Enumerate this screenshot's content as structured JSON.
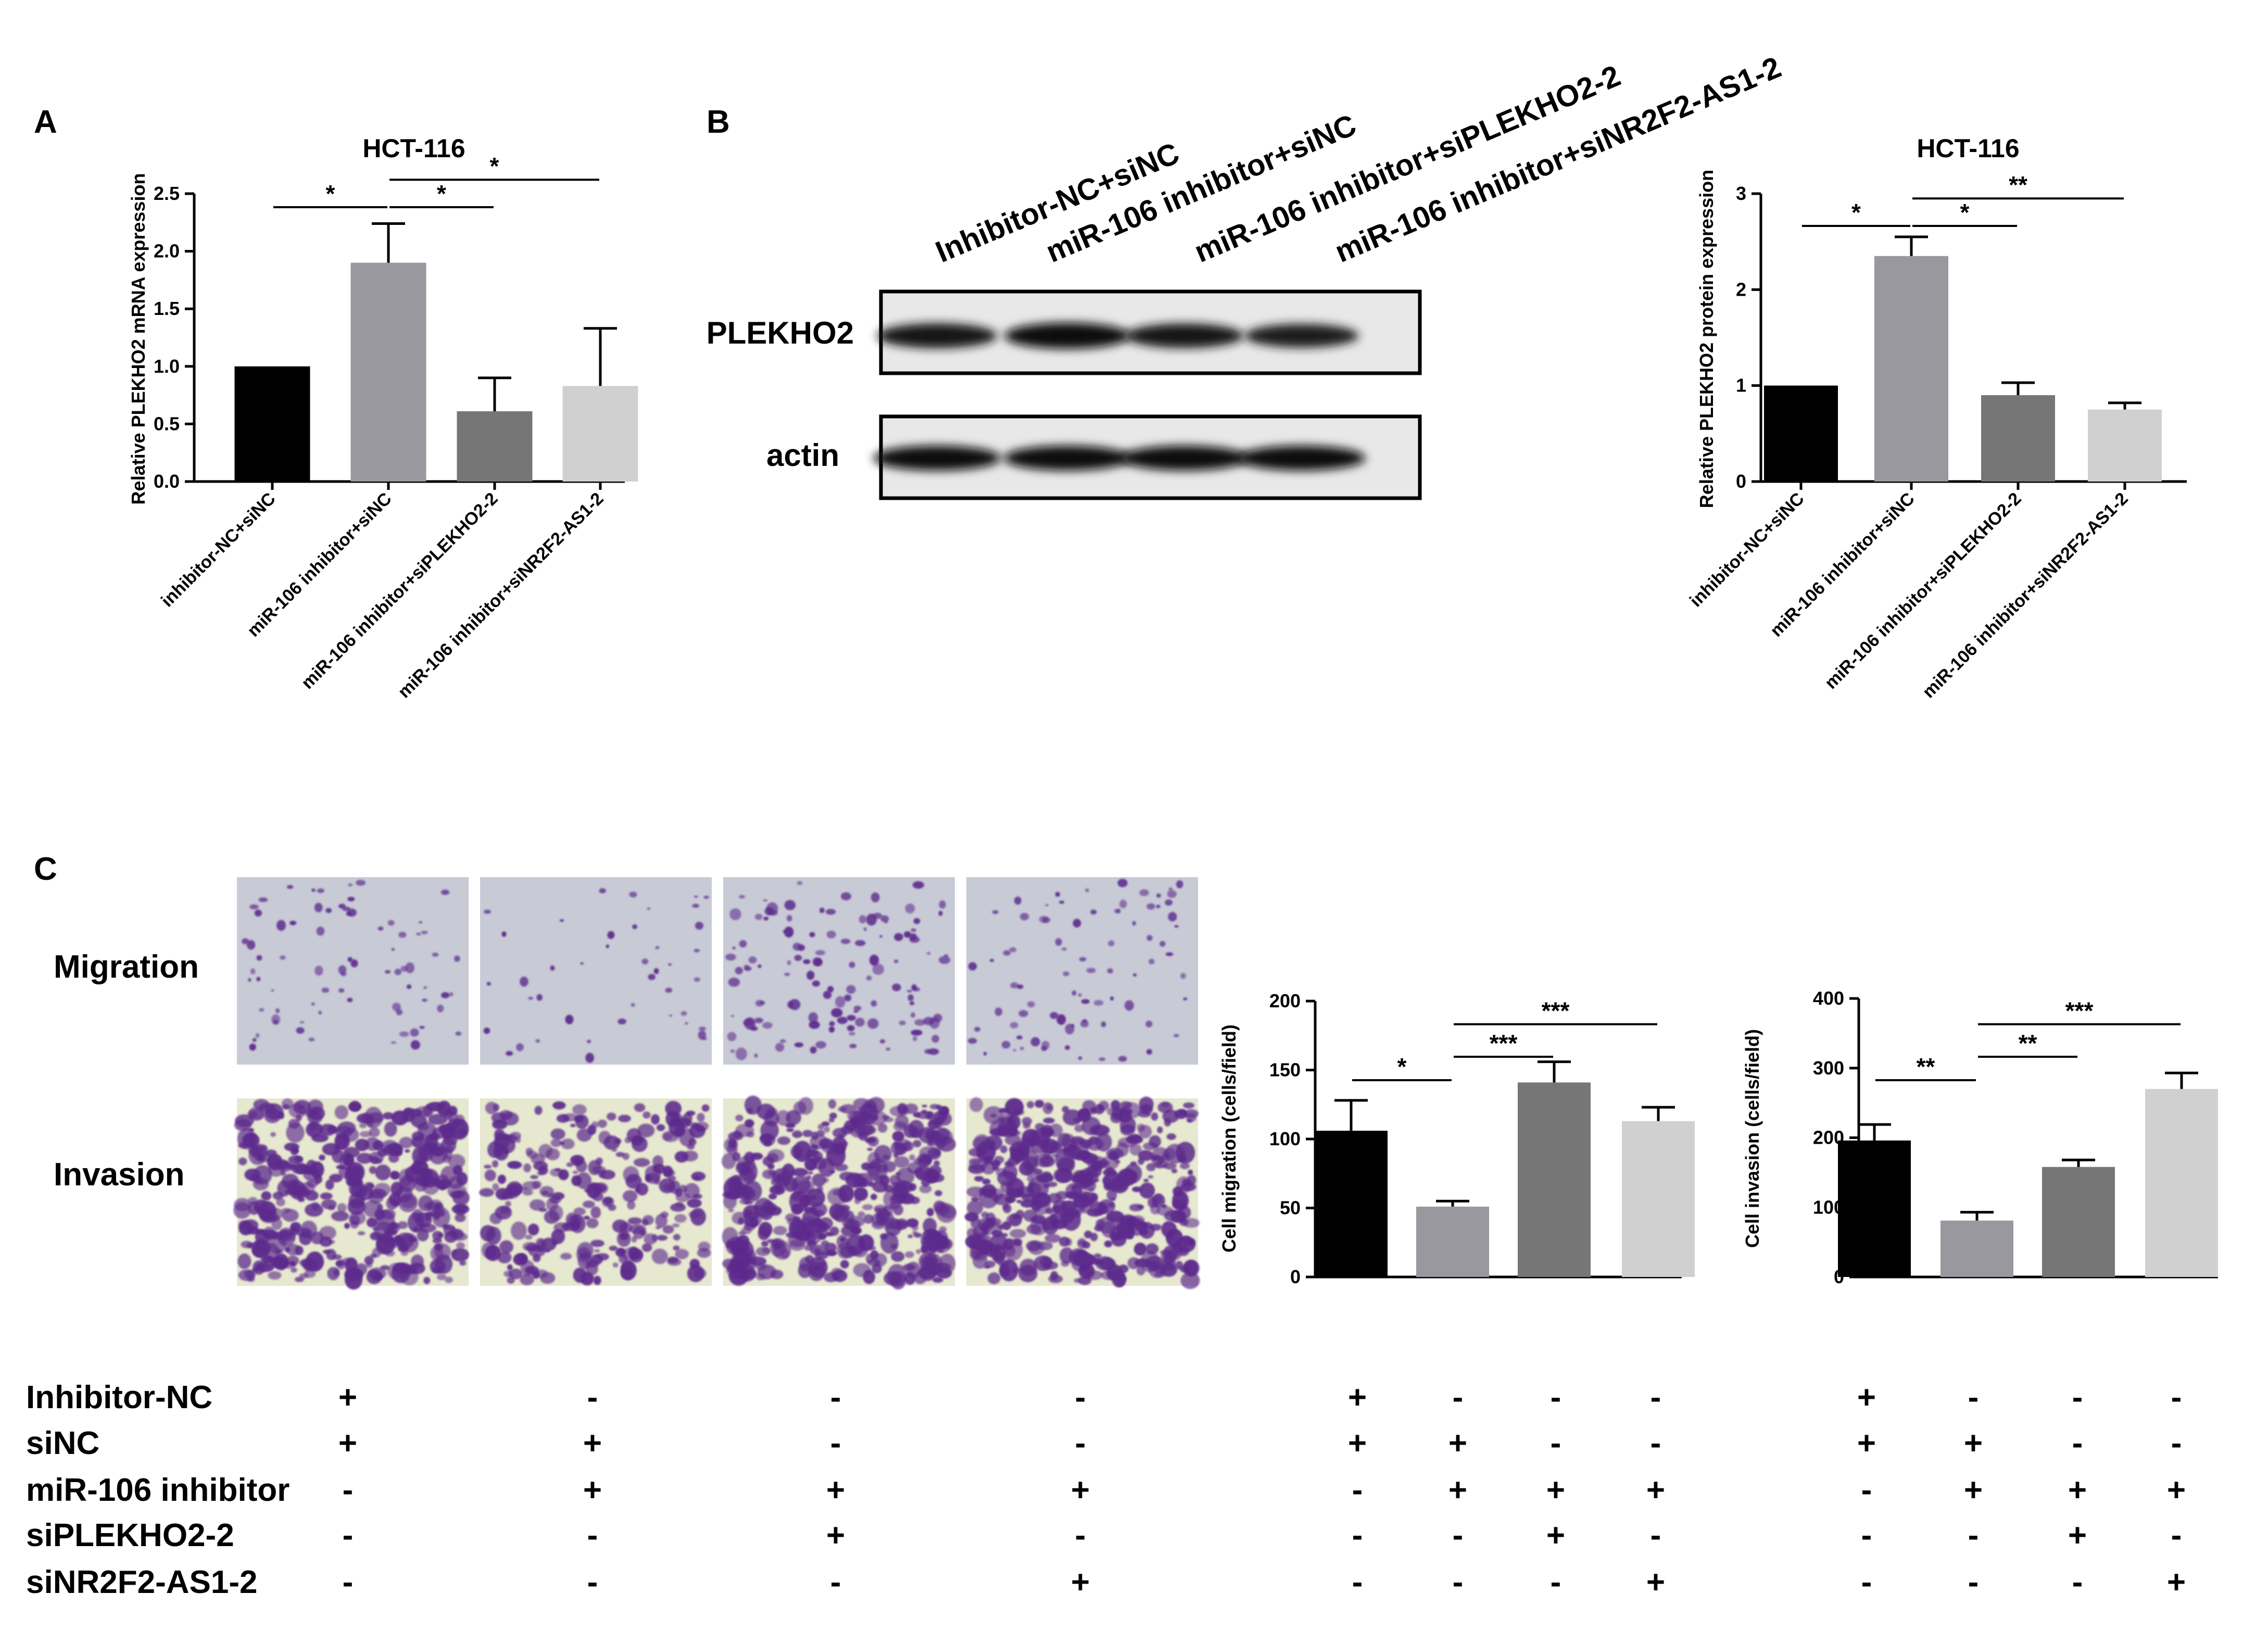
{
  "panels": {
    "a": "A",
    "b": "B",
    "c": "C"
  },
  "colors": {
    "bar1": "#000000",
    "bar2": "#98989e",
    "bar3": "#767676",
    "bar4": "#d0d0d0",
    "axis": "#000000"
  },
  "blot": {
    "lanes": [
      "Inhibitor-NC+siNC",
      "miR-106 inhibitor+siNC",
      "miR-106 inhibitor+siPLEKHO2-2",
      "miR-106 inhibitor+siNR2F2-AS1-2"
    ],
    "rows": [
      "PLEKHO2",
      "actin"
    ],
    "band_intensity": {
      "PLEKHO2": [
        0.85,
        1.0,
        0.8,
        0.7
      ],
      "actin": [
        1.0,
        1.0,
        1.0,
        1.0
      ]
    }
  },
  "images": {
    "rows": [
      "Migration",
      "Invasion"
    ],
    "stain_density": {
      "Migration": [
        0.45,
        0.15,
        0.9,
        0.5
      ],
      "Invasion": [
        0.9,
        0.6,
        1.0,
        1.0
      ]
    }
  },
  "treatment_table": {
    "rows": [
      "Inhibitor-NC",
      "siNC",
      "miR-106 inhibitor",
      "siPLEKHO2-2",
      "siNR2F2-AS1-2"
    ],
    "signs": [
      [
        "+",
        "-",
        "-",
        "-"
      ],
      [
        "+",
        "+",
        "-",
        "-"
      ],
      [
        "-",
        "+",
        "+",
        "+"
      ],
      [
        "-",
        "-",
        "+",
        "-"
      ],
      [
        "-",
        "-",
        "-",
        "+"
      ]
    ]
  },
  "chart_data": [
    {
      "id": "A",
      "type": "bar",
      "title": "HCT-116",
      "ylabel": "Relative PLEKHO2 mRNA expression",
      "categories": [
        "inhibitor-NC+siNC",
        "miR-106 inhibitor+siNC",
        "miR-106 inhibitor+siPLEKHO2-2",
        "miR-106 inhibitor+siNR2F2-AS1-2"
      ],
      "values": [
        1.0,
        1.9,
        0.61,
        0.83
      ],
      "errors": [
        0,
        0.34,
        0.29,
        0.5
      ],
      "ylim": [
        0,
        2.5
      ],
      "yticks": [
        "0.0",
        "0.5",
        "1.0",
        "1.5",
        "2.0",
        "2.5"
      ],
      "significance": [
        {
          "from": 0,
          "to": 1,
          "label": "*"
        },
        {
          "from": 1,
          "to": 2,
          "label": "*"
        },
        {
          "from": 1,
          "to": 3,
          "label": "*"
        }
      ]
    },
    {
      "id": "B",
      "type": "bar",
      "title": "HCT-116",
      "ylabel": "Relative PLEKHO2 protein expression",
      "categories": [
        "inhibitor-NC+siNC",
        "miR-106 inhibitor+siNC",
        "miR-106 inhibitor+siPLEKHO2-2",
        "miR-106 inhibitor+siNR2F2-AS1-2"
      ],
      "values": [
        1.0,
        2.35,
        0.9,
        0.75
      ],
      "errors": [
        0,
        0.2,
        0.13,
        0.07
      ],
      "ylim": [
        0,
        3
      ],
      "yticks": [
        "0",
        "1",
        "2",
        "3"
      ],
      "significance": [
        {
          "from": 0,
          "to": 1,
          "label": "*"
        },
        {
          "from": 1,
          "to": 2,
          "label": "*"
        },
        {
          "from": 1,
          "to": 3,
          "label": "**"
        }
      ]
    },
    {
      "id": "C-migration",
      "type": "bar",
      "title": "",
      "ylabel": "Cell migration (cells/field)",
      "categories": [
        "",
        "",
        "",
        ""
      ],
      "values": [
        106,
        51,
        141,
        113
      ],
      "errors": [
        22,
        4,
        15,
        10
      ],
      "ylim": [
        0,
        200
      ],
      "yticks": [
        "0",
        "50",
        "100",
        "150",
        "200"
      ],
      "significance": [
        {
          "from": 0,
          "to": 1,
          "label": "*"
        },
        {
          "from": 1,
          "to": 2,
          "label": "***"
        },
        {
          "from": 1,
          "to": 3,
          "label": "***"
        }
      ]
    },
    {
      "id": "C-invasion",
      "type": "bar",
      "title": "",
      "ylabel": "Cell invasion (cells/field)",
      "categories": [
        "",
        "",
        "",
        ""
      ],
      "values": [
        196,
        81,
        158,
        270
      ],
      "errors": [
        23,
        12,
        10,
        23
      ],
      "ylim": [
        0,
        400
      ],
      "yticks": [
        "0",
        "100",
        "200",
        "300",
        "400"
      ],
      "significance": [
        {
          "from": 0,
          "to": 1,
          "label": "**"
        },
        {
          "from": 1,
          "to": 2,
          "label": "**"
        },
        {
          "from": 1,
          "to": 3,
          "label": "***"
        }
      ]
    }
  ]
}
